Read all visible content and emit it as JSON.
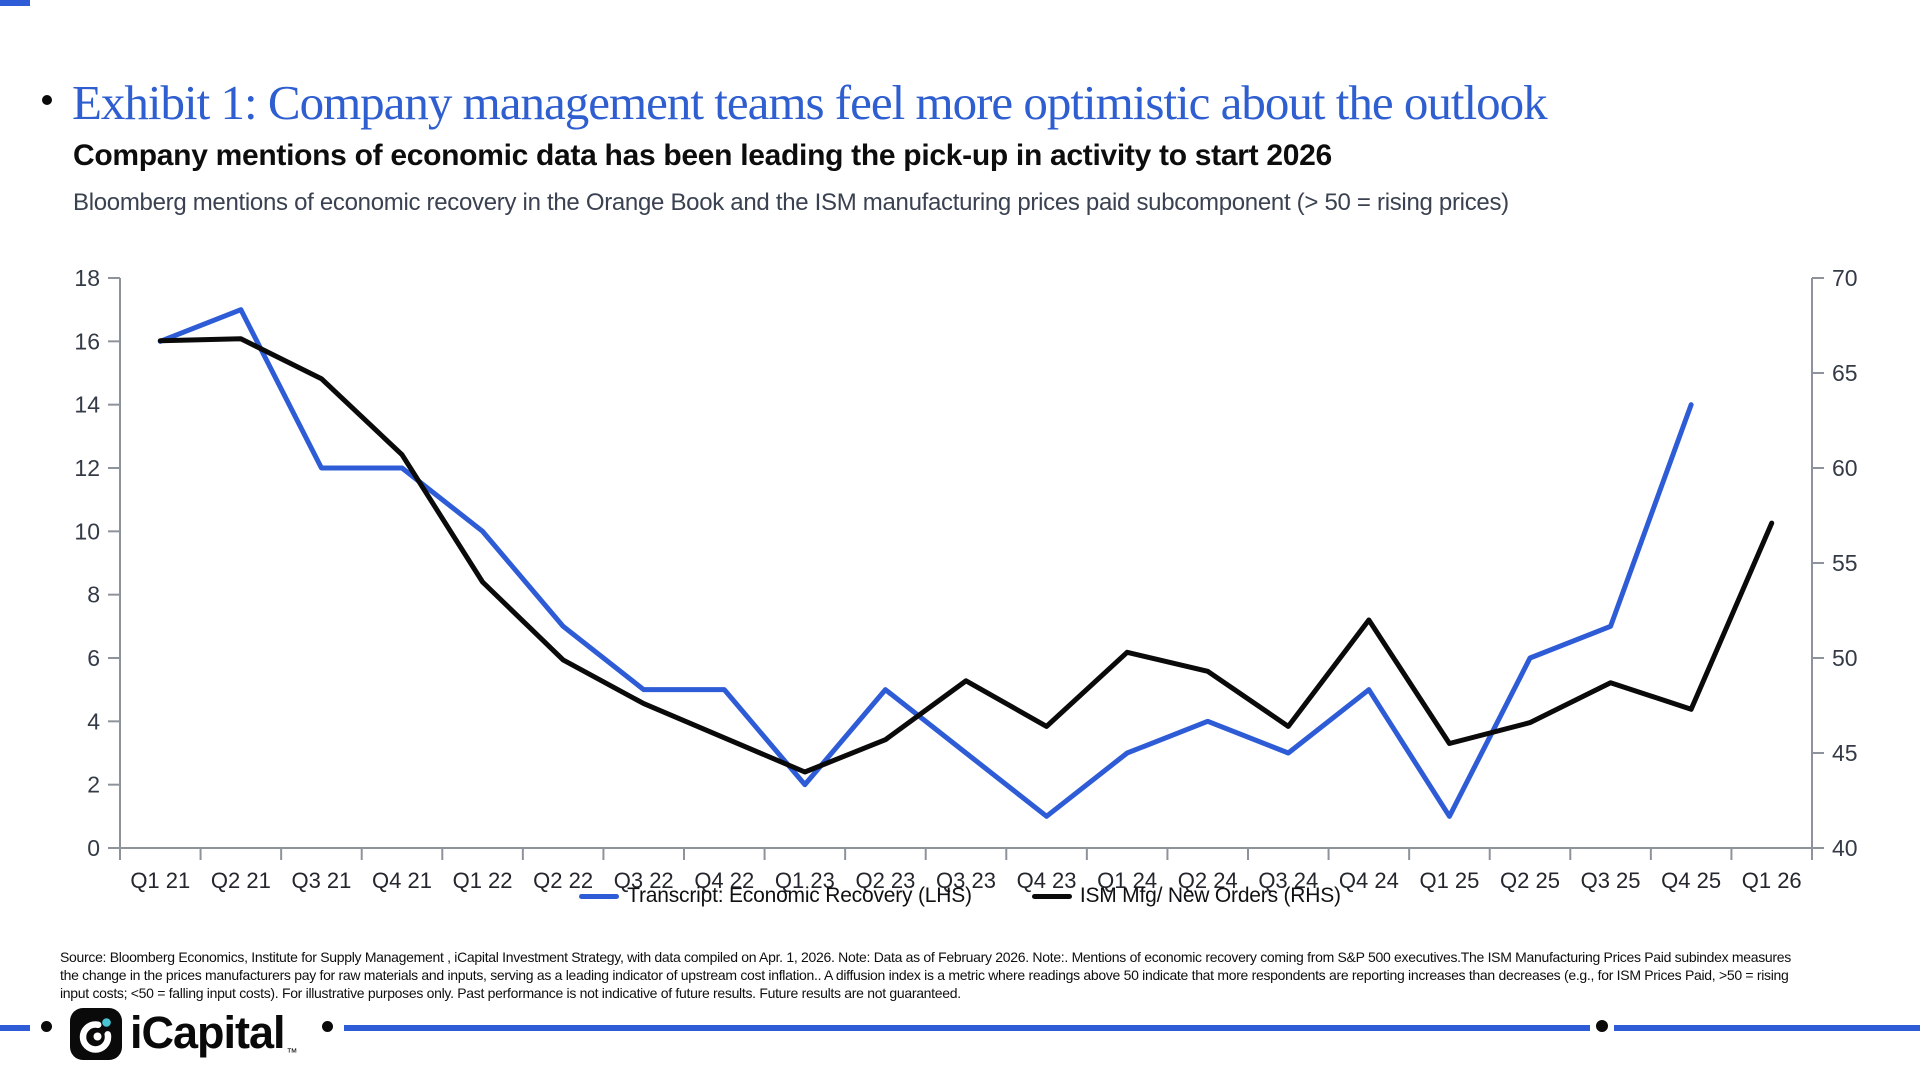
{
  "header": {
    "exhibit_title": "Exhibit 1: Company management teams feel more optimistic about the outlook",
    "subtitle": "Company mentions of economic data  has been leading the pick-up in activity to start 2026",
    "description": "Bloomberg mentions of economic recovery in the Orange Book and the ISM manufacturing prices paid subcomponent (> 50 = rising prices)"
  },
  "chart_data": {
    "type": "line",
    "categories": [
      "Q1 21",
      "Q2 21",
      "Q3 21",
      "Q4 21",
      "Q1 22",
      "Q2 22",
      "Q3 22",
      "Q4 22",
      "Q1 23",
      "Q2 23",
      "Q3 23",
      "Q4 23",
      "Q1 24",
      "Q2 24",
      "Q3 24",
      "Q4 24",
      "Q1 25",
      "Q2 25",
      "Q3 25",
      "Q4 25",
      "Q1 26"
    ],
    "series": [
      {
        "name": "Transcript: Economic Recovery (LHS)",
        "axis": "left",
        "color": "#2e5cd6",
        "values": [
          16,
          17,
          12,
          12,
          10,
          7,
          5,
          5,
          2,
          5,
          3,
          1,
          3,
          4,
          3,
          5,
          1,
          6,
          7,
          14,
          null
        ]
      },
      {
        "name": "ISM Mfg/ New Orders (RHS)",
        "axis": "right",
        "color": "#0a0a0a",
        "values": [
          66.7,
          66.8,
          64.7,
          60.7,
          54,
          49.9,
          47.6,
          45.8,
          44,
          45.7,
          48.8,
          46.4,
          50.3,
          49.3,
          46.4,
          52,
          45.5,
          46.6,
          48.7,
          47.3,
          57.1
        ]
      }
    ],
    "left_axis": {
      "min": 0,
      "max": 18,
      "ticks": [
        0,
        2,
        4,
        6,
        8,
        10,
        12,
        14,
        16,
        18
      ]
    },
    "right_axis": {
      "min": 40,
      "max": 70,
      "ticks": [
        40,
        45,
        50,
        55,
        60,
        65,
        70
      ]
    },
    "grid": false,
    "legend_position": "bottom",
    "title": "Exhibit 1: Company management teams feel more optimistic about the outlook",
    "xlabel": "",
    "ylabel_left": "",
    "ylabel_right": ""
  },
  "legend": {
    "items": [
      {
        "label": "Transcript: Economic Recovery (LHS)",
        "color": "#2e5cd6"
      },
      {
        "label": "ISM Mfg/ New Orders (RHS)",
        "color": "#0a0a0a"
      }
    ]
  },
  "footnote": {
    "lines": [
      "Source: Bloomberg Economics, Institute for Supply Management , iCapital Investment Strategy, with data compiled on Apr. 1, 2026. Note: Data as of February 2026. Note:. Mentions of economic recovery coming from S&P 500 executives.The ISM Manufacturing Prices Paid subindex measures",
      "the change in the prices manufacturers pay for raw materials and inputs, serving as a leading indicator of upstream cost inflation.. A diffusion index is a metric where readings above 50 indicate that more respondents are reporting increases than decreases (e.g., for ISM Prices Paid, >50 = rising",
      "input costs; <50 = falling input costs). For illustrative purposes only. Past performance is not indicative of future results. Future results are not guaranteed."
    ]
  },
  "footer": {
    "brand": "iCapital",
    "trademark": "™"
  },
  "colors": {
    "accent_blue": "#2e5cd6",
    "title_blue": "#2e5ecf",
    "series_black": "#0a0a0a",
    "axis_gray": "#8e939b",
    "logo_teal": "#49c5d4"
  }
}
